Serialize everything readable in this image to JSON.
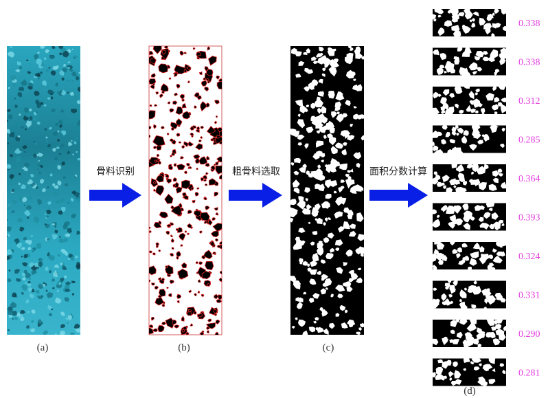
{
  "panels": [
    {
      "label": "(a)"
    },
    {
      "label": "(b)"
    },
    {
      "label": "(c)"
    },
    {
      "label": "(d)"
    }
  ],
  "steps": [
    {
      "label": "骨料识别"
    },
    {
      "label": "粗骨料选取"
    },
    {
      "label": "面积分数计算"
    }
  ],
  "fractions": [
    "0.338",
    "0.338",
    "0.312",
    "0.285",
    "0.364",
    "0.393",
    "0.324",
    "0.331",
    "0.290",
    "0.281"
  ]
}
